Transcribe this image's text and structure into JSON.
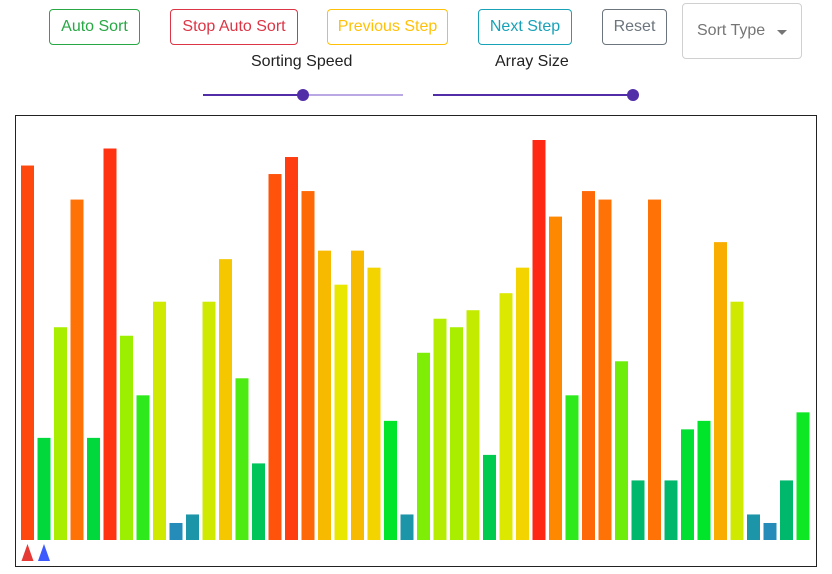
{
  "toolbar": {
    "auto_sort": "Auto Sort",
    "stop_auto_sort": "Stop Auto Sort",
    "previous_step": "Previous Step",
    "next_step": "Next Step",
    "reset": "Reset"
  },
  "sort_type": {
    "placeholder": "Sort Type"
  },
  "sliders": {
    "speed": {
      "label": "Sorting Speed",
      "value_fraction": 0.5
    },
    "size": {
      "label": "Array Size",
      "value_fraction": 1.0
    }
  },
  "colors": {
    "slider_accent": "#512da8",
    "slider_track": "#b9a8e3",
    "pointer_left": "#e53935",
    "pointer_right": "#3d5afe"
  },
  "visualizer": {
    "values": [
      44,
      12,
      25,
      40,
      12,
      46,
      24,
      17,
      28,
      2,
      3,
      28,
      33,
      19,
      9,
      43,
      45,
      41,
      34,
      30,
      34,
      32,
      14,
      3,
      22,
      26,
      25,
      27,
      10,
      29,
      32,
      47,
      38,
      17,
      41,
      40,
      21,
      7,
      40,
      7,
      13,
      14,
      35,
      28,
      3,
      2,
      7,
      15
    ],
    "max_value": 47,
    "pointers": [
      0,
      1
    ]
  }
}
